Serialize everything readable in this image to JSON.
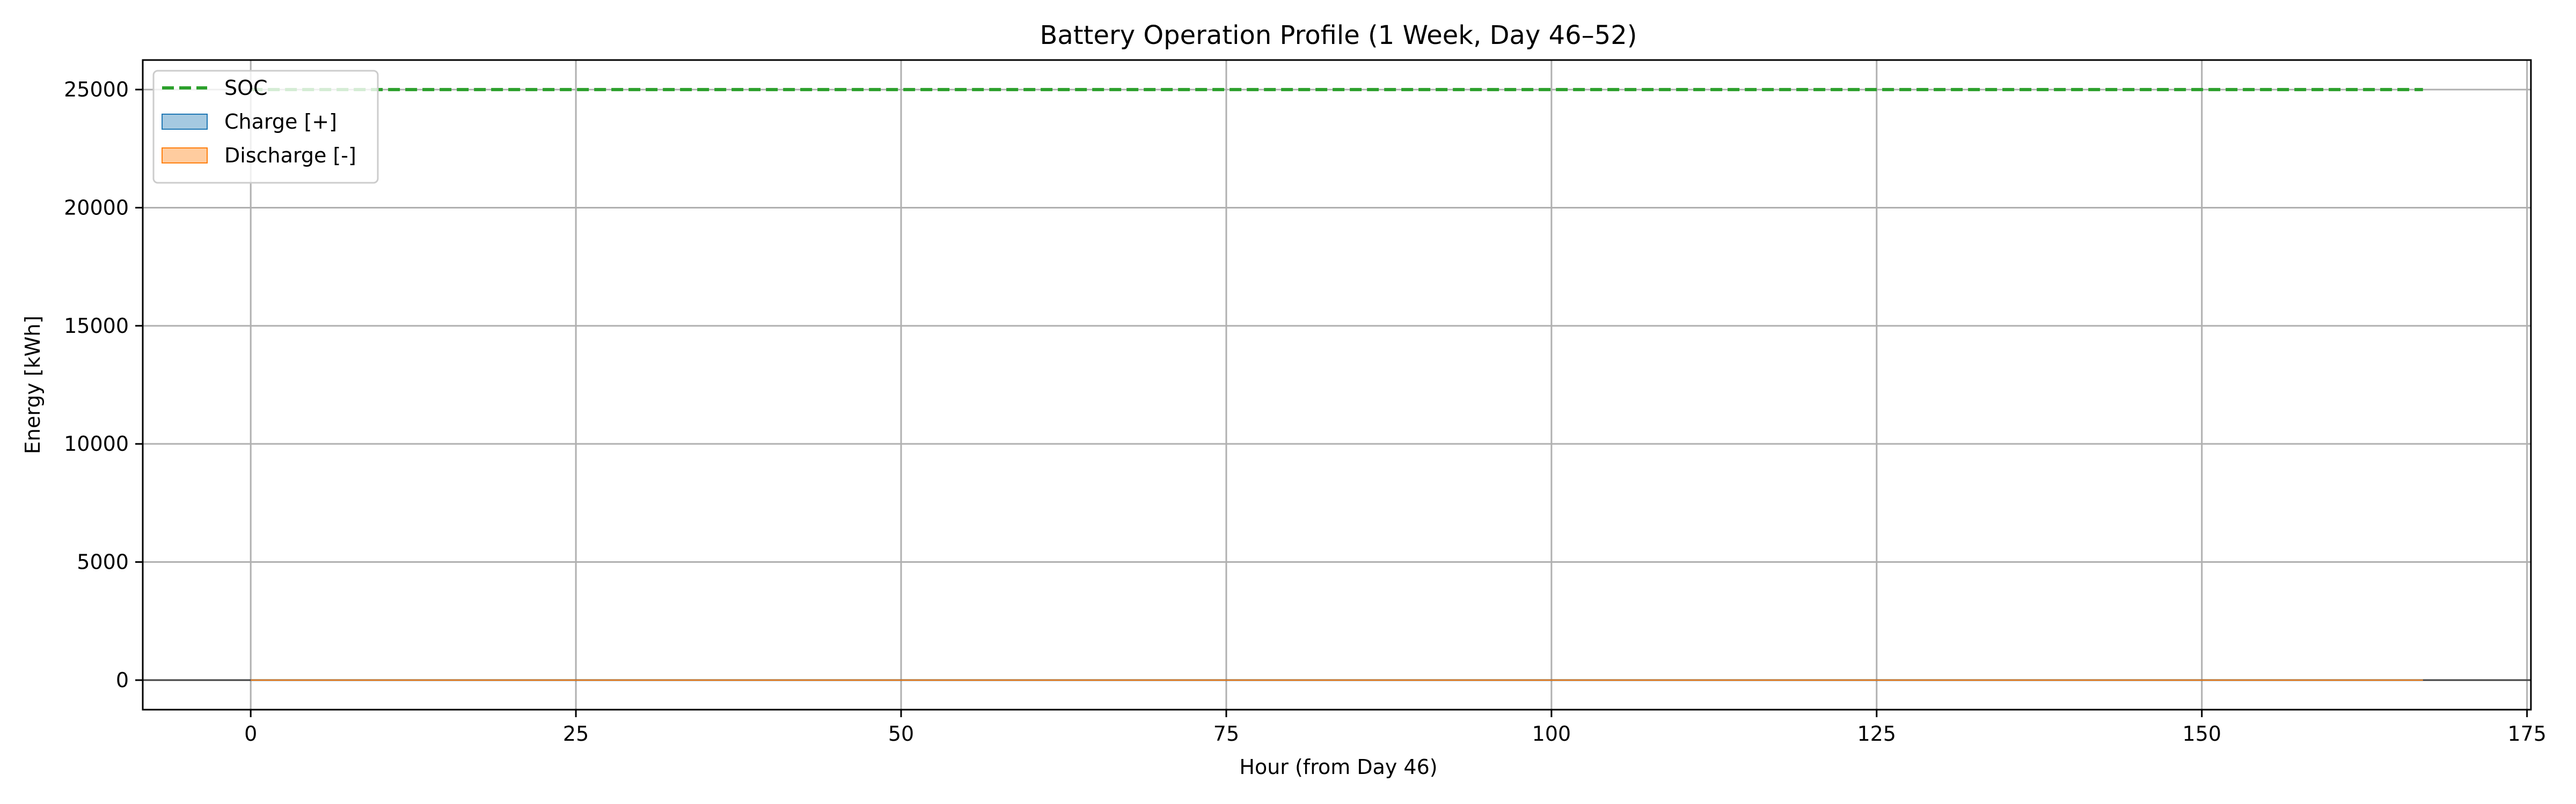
{
  "chart_data": {
    "type": "line",
    "title": "Battery Operation Profile (1 Week, Day 46–52)",
    "xlabel": "Hour (from Day 46)",
    "ylabel": "Energy [kWh]",
    "xlim": [
      -8.3,
      175.3
    ],
    "ylim": [
      -1250,
      26250
    ],
    "xticks": [
      0,
      25,
      50,
      75,
      100,
      125,
      150,
      175
    ],
    "yticks": [
      0,
      5000,
      10000,
      15000,
      20000,
      25000
    ],
    "grid": true,
    "legend_position": "top-left",
    "zero_line": 0,
    "series": [
      {
        "name": "SOC",
        "kind": "line",
        "style": "dashed",
        "color": "#2ca02c",
        "x": [
          0,
          167
        ],
        "y": [
          25000,
          25000
        ]
      },
      {
        "name": "Charge [+]",
        "kind": "area",
        "color": "#1f77b4",
        "x": [
          0,
          167
        ],
        "y": [
          0,
          0
        ]
      },
      {
        "name": "Discharge [-]",
        "kind": "area",
        "color": "#ff7f0e",
        "x": [
          0,
          167
        ],
        "y": [
          0,
          0
        ]
      }
    ]
  }
}
